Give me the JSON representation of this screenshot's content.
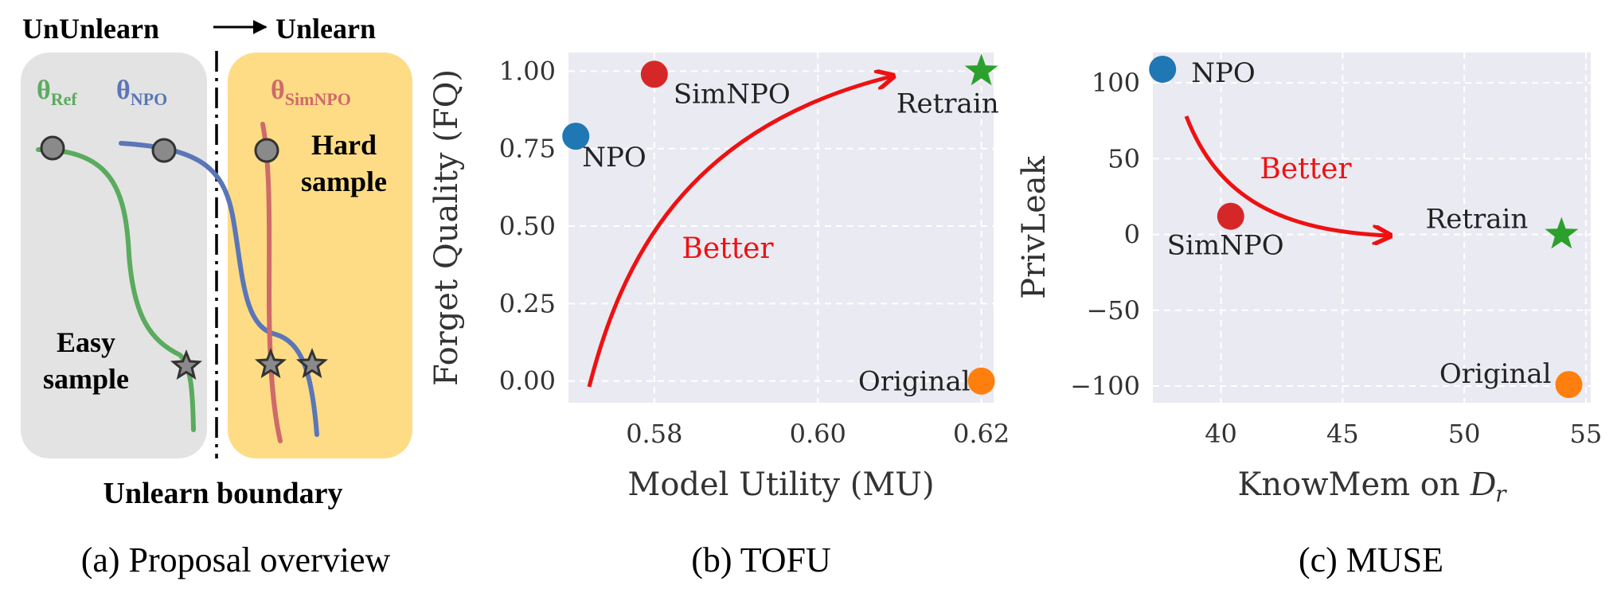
{
  "panel_a": {
    "header_left": "UnUnlearn",
    "header_right": "Unlearn",
    "theta_ref": "θ",
    "theta_ref_sub": "Ref",
    "theta_npo": "θ",
    "theta_npo_sub": "NPO",
    "theta_simnpo": "θ",
    "theta_simnpo_sub": "SimNPO",
    "hard_line1": "Hard",
    "hard_line2": "sample",
    "easy_line1": "Easy",
    "easy_line2": "sample",
    "boundary_label": "Unlearn boundary",
    "caption": "(a) Proposal overview",
    "colors": {
      "ref": "#5aab5e",
      "npo": "#5b76b8",
      "simnpo": "#cf6a6a",
      "left_bg": "#e3e3e3",
      "right_bg": "#fddc85"
    }
  },
  "chart_data": [
    {
      "type": "scatter",
      "panel": "b",
      "caption": "(b) TOFU",
      "xlabel": "Model Utility (MU)",
      "ylabel": "Forget Quality (FQ)",
      "xlim": [
        0.5695,
        0.6215
      ],
      "ylim": [
        -0.07,
        1.06
      ],
      "xticks": [
        0.58,
        0.6,
        0.62
      ],
      "xtick_labels": [
        "0.58",
        "0.60",
        "0.62"
      ],
      "yticks": [
        0.0,
        0.25,
        0.5,
        0.75,
        1.0
      ],
      "ytick_labels": [
        "0.00",
        "0.25",
        "0.50",
        "0.75",
        "1.00"
      ],
      "grid": true,
      "points": [
        {
          "name": "NPO",
          "x": 0.5704,
          "y": 0.79,
          "color": "#1f77b4",
          "marker": "circle"
        },
        {
          "name": "SimNPO",
          "x": 0.58,
          "y": 0.99,
          "color": "#d62728",
          "marker": "circle"
        },
        {
          "name": "Retrain",
          "x": 0.62,
          "y": 1.0,
          "color": "#2ca02c",
          "marker": "star"
        },
        {
          "name": "Original",
          "x": 0.62,
          "y": 0.0,
          "color": "#ff7f0e",
          "marker": "circle"
        }
      ],
      "annotation": {
        "text": "Better",
        "color": "#ee1111"
      }
    },
    {
      "type": "scatter",
      "panel": "c",
      "caption": "(c) MUSE",
      "xlabel": "KnowMem on D_r",
      "ylabel": "PrivLeak",
      "xlim": [
        37.2,
        55.2
      ],
      "ylim": [
        -111,
        120
      ],
      "xticks": [
        40,
        45,
        50,
        55
      ],
      "xtick_labels": [
        "40",
        "45",
        "50",
        "55"
      ],
      "yticks": [
        -100,
        -50,
        0,
        50,
        100
      ],
      "ytick_labels": [
        "−100",
        "−50",
        "0",
        "50",
        "100"
      ],
      "grid": true,
      "points": [
        {
          "name": "NPO",
          "x": 37.6,
          "y": 109,
          "color": "#1f77b4",
          "marker": "circle"
        },
        {
          "name": "SimNPO",
          "x": 40.4,
          "y": 12,
          "color": "#d62728",
          "marker": "circle"
        },
        {
          "name": "Retrain",
          "x": 54.0,
          "y": 0,
          "color": "#2ca02c",
          "marker": "star"
        },
        {
          "name": "Original",
          "x": 54.3,
          "y": -99,
          "color": "#ff7f0e",
          "marker": "circle"
        }
      ],
      "annotation": {
        "text": "Better",
        "color": "#ee1111"
      }
    }
  ]
}
